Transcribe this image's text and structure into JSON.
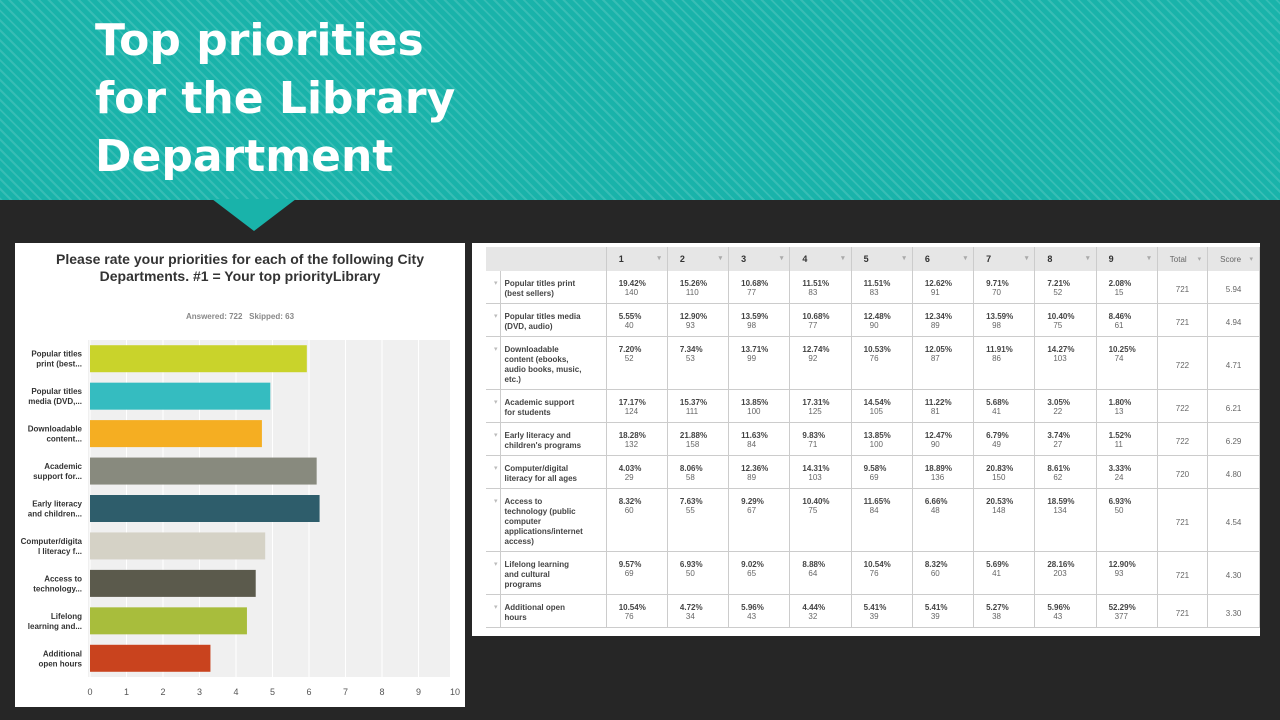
{
  "slide": {
    "title_lines": [
      "Top priorities",
      "for the Library",
      "Department"
    ]
  },
  "chart_data": {
    "type": "bar",
    "orientation": "horizontal",
    "title": "Please rate your priorities for each of the following City Departments. #1 = Your top priorityLibrary",
    "answered_label": "Answered: 722",
    "skipped_label": "Skipped: 63",
    "categories": [
      [
        "Popular titles",
        "print (best..."
      ],
      [
        "Popular titles",
        "media (DVD,..."
      ],
      [
        "Downloadable",
        "content..."
      ],
      [
        "Academic",
        "support for..."
      ],
      [
        "Early literacy",
        "and children..."
      ],
      [
        "Computer/digita",
        "l literacy f..."
      ],
      [
        "Access to",
        "technology..."
      ],
      [
        "Lifelong",
        "learning and..."
      ],
      [
        "Additional",
        "open hours"
      ]
    ],
    "values": [
      5.94,
      4.94,
      4.71,
      6.21,
      6.29,
      4.8,
      4.54,
      4.3,
      3.3
    ],
    "colors": [
      "#c9d32b",
      "#35bcc0",
      "#f5ae22",
      "#888a7e",
      "#2e5d6b",
      "#d5d2c6",
      "#5b5a4c",
      "#a8bd3c",
      "#c9431e"
    ],
    "xlim": [
      0,
      10
    ],
    "xticks": [
      "0",
      "1",
      "2",
      "3",
      "4",
      "5",
      "6",
      "7",
      "8",
      "9",
      "10"
    ],
    "grid": true
  },
  "table": {
    "headers": [
      "1",
      "2",
      "3",
      "4",
      "5",
      "6",
      "7",
      "8",
      "9"
    ],
    "total_header": "Total",
    "score_header": "Score",
    "rows": [
      {
        "label": [
          "Popular titles print",
          "(best sellers)"
        ],
        "cells": [
          [
            "19.42%",
            "140"
          ],
          [
            "15.26%",
            "110"
          ],
          [
            "10.68%",
            "77"
          ],
          [
            "11.51%",
            "83"
          ],
          [
            "11.51%",
            "83"
          ],
          [
            "12.62%",
            "91"
          ],
          [
            "9.71%",
            "70"
          ],
          [
            "7.21%",
            "52"
          ],
          [
            "2.08%",
            "15"
          ]
        ],
        "total": "721",
        "score": "5.94"
      },
      {
        "label": [
          "Popular titles media",
          "(DVD, audio)"
        ],
        "cells": [
          [
            "5.55%",
            "40"
          ],
          [
            "12.90%",
            "93"
          ],
          [
            "13.59%",
            "98"
          ],
          [
            "10.68%",
            "77"
          ],
          [
            "12.48%",
            "90"
          ],
          [
            "12.34%",
            "89"
          ],
          [
            "13.59%",
            "98"
          ],
          [
            "10.40%",
            "75"
          ],
          [
            "8.46%",
            "61"
          ]
        ],
        "total": "721",
        "score": "4.94"
      },
      {
        "label": [
          "Downloadable",
          "content (ebooks,",
          "audio books, music,",
          "etc.)"
        ],
        "cells": [
          [
            "7.20%",
            "52"
          ],
          [
            "7.34%",
            "53"
          ],
          [
            "13.71%",
            "99"
          ],
          [
            "12.74%",
            "92"
          ],
          [
            "10.53%",
            "76"
          ],
          [
            "12.05%",
            "87"
          ],
          [
            "11.91%",
            "86"
          ],
          [
            "14.27%",
            "103"
          ],
          [
            "10.25%",
            "74"
          ]
        ],
        "total": "722",
        "score": "4.71"
      },
      {
        "label": [
          "Academic support",
          "for students"
        ],
        "cells": [
          [
            "17.17%",
            "124"
          ],
          [
            "15.37%",
            "111"
          ],
          [
            "13.85%",
            "100"
          ],
          [
            "17.31%",
            "125"
          ],
          [
            "14.54%",
            "105"
          ],
          [
            "11.22%",
            "81"
          ],
          [
            "5.68%",
            "41"
          ],
          [
            "3.05%",
            "22"
          ],
          [
            "1.80%",
            "13"
          ]
        ],
        "total": "722",
        "score": "6.21"
      },
      {
        "label": [
          "Early literacy and",
          "children's programs"
        ],
        "cells": [
          [
            "18.28%",
            "132"
          ],
          [
            "21.88%",
            "158"
          ],
          [
            "11.63%",
            "84"
          ],
          [
            "9.83%",
            "71"
          ],
          [
            "13.85%",
            "100"
          ],
          [
            "12.47%",
            "90"
          ],
          [
            "6.79%",
            "49"
          ],
          [
            "3.74%",
            "27"
          ],
          [
            "1.52%",
            "11"
          ]
        ],
        "total": "722",
        "score": "6.29"
      },
      {
        "label": [
          "Computer/digital",
          "literacy for all ages"
        ],
        "cells": [
          [
            "4.03%",
            "29"
          ],
          [
            "8.06%",
            "58"
          ],
          [
            "12.36%",
            "89"
          ],
          [
            "14.31%",
            "103"
          ],
          [
            "9.58%",
            "69"
          ],
          [
            "18.89%",
            "136"
          ],
          [
            "20.83%",
            "150"
          ],
          [
            "8.61%",
            "62"
          ],
          [
            "3.33%",
            "24"
          ]
        ],
        "total": "720",
        "score": "4.80"
      },
      {
        "label": [
          "Access to",
          "technology (public",
          "computer",
          "applications/internet",
          "access)"
        ],
        "cells": [
          [
            "8.32%",
            "60"
          ],
          [
            "7.63%",
            "55"
          ],
          [
            "9.29%",
            "67"
          ],
          [
            "10.40%",
            "75"
          ],
          [
            "11.65%",
            "84"
          ],
          [
            "6.66%",
            "48"
          ],
          [
            "20.53%",
            "148"
          ],
          [
            "18.59%",
            "134"
          ],
          [
            "6.93%",
            "50"
          ]
        ],
        "total": "721",
        "score": "4.54"
      },
      {
        "label": [
          "Lifelong learning",
          "and cultural",
          "programs"
        ],
        "cells": [
          [
            "9.57%",
            "69"
          ],
          [
            "6.93%",
            "50"
          ],
          [
            "9.02%",
            "65"
          ],
          [
            "8.88%",
            "64"
          ],
          [
            "10.54%",
            "76"
          ],
          [
            "8.32%",
            "60"
          ],
          [
            "5.69%",
            "41"
          ],
          [
            "28.16%",
            "203"
          ],
          [
            "12.90%",
            "93"
          ]
        ],
        "total": "721",
        "score": "4.30"
      },
      {
        "label": [
          "Additional open",
          "hours"
        ],
        "cells": [
          [
            "10.54%",
            "76"
          ],
          [
            "4.72%",
            "34"
          ],
          [
            "5.96%",
            "43"
          ],
          [
            "4.44%",
            "32"
          ],
          [
            "5.41%",
            "39"
          ],
          [
            "5.41%",
            "39"
          ],
          [
            "5.27%",
            "38"
          ],
          [
            "5.96%",
            "43"
          ],
          [
            "52.29%",
            "377"
          ]
        ],
        "total": "721",
        "score": "3.30"
      }
    ]
  }
}
